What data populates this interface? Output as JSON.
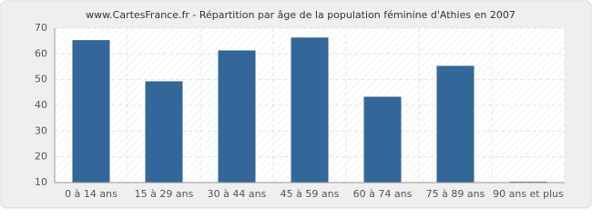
{
  "chart_data": {
    "type": "bar",
    "title": "www.CartesFrance.fr - Répartition par âge de la population féminine d'Athies en 2007",
    "categories": [
      "0 à 14 ans",
      "15 à 29 ans",
      "30 à 44 ans",
      "45 à 59 ans",
      "60 à 74 ans",
      "75 à 89 ans",
      "90 ans et plus"
    ],
    "values": [
      65,
      49,
      61,
      66,
      43,
      55,
      10
    ],
    "color": "#336699",
    "ylim": [
      10,
      70
    ],
    "yticks": [
      10,
      20,
      30,
      40,
      50,
      60,
      70
    ],
    "grid": true
  }
}
